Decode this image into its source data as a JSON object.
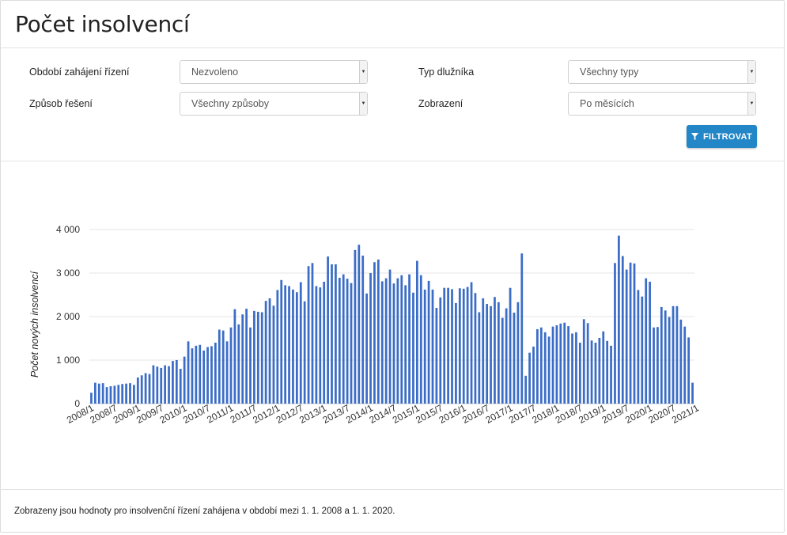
{
  "header": {
    "title": "Počet insolvencí"
  },
  "filters": {
    "period": {
      "label": "Období zahájení řízení",
      "value": "Nezvoleno"
    },
    "debtor_type": {
      "label": "Typ dlužníka",
      "value": "Všechny typy"
    },
    "resolution": {
      "label": "Způsob řešení",
      "value": "Všechny způsoby"
    },
    "display": {
      "label": "Zobrazení",
      "value": "Po měsících"
    },
    "filter_button": "FILTROVAT"
  },
  "footer": {
    "note": "Zobrazeny jsou hodnoty pro insolvenční řízení zahájena v období mezi 1. 1. 2008 a 1. 1. 2020."
  },
  "chart_data": {
    "type": "bar",
    "title": "",
    "xlabel": "",
    "ylabel": "Počet nových insolvencí",
    "ylim": [
      0,
      4000
    ],
    "yticks": [
      0,
      1000,
      2000,
      3000,
      4000
    ],
    "ytick_labels": [
      "0",
      "1 000",
      "2 000",
      "3 000",
      "4 000"
    ],
    "grid": true,
    "bar_color": "#3b6dc7",
    "start": "2008/1",
    "tick_labels": [
      "2008/1",
      "2008/7",
      "2009/1",
      "2009/7",
      "2010/1",
      "2010/7",
      "2011/1",
      "2011/7",
      "2012/1",
      "2012/7",
      "2013/1",
      "2013/7",
      "2014/1",
      "2014/7",
      "2015/1",
      "2015/7",
      "2016/1",
      "2016/7",
      "2017/1",
      "2017/7",
      "2018/1",
      "2018/7",
      "2019/1",
      "2019/7",
      "2020/1",
      "2020/7",
      "2021/1"
    ],
    "values": [
      250,
      480,
      460,
      470,
      380,
      400,
      410,
      430,
      450,
      460,
      470,
      430,
      600,
      650,
      700,
      680,
      880,
      850,
      820,
      880,
      860,
      980,
      1000,
      800,
      1080,
      1430,
      1270,
      1330,
      1350,
      1220,
      1300,
      1320,
      1400,
      1700,
      1680,
      1430,
      1750,
      2170,
      1820,
      2050,
      2180,
      1750,
      2130,
      2110,
      2100,
      2360,
      2420,
      2250,
      2610,
      2840,
      2720,
      2700,
      2620,
      2560,
      2790,
      2350,
      3160,
      3230,
      2700,
      2670,
      2800,
      3380,
      3200,
      3200,
      2890,
      2970,
      2870,
      2770,
      3530,
      3650,
      3400,
      2530,
      3000,
      3250,
      3310,
      2810,
      2880,
      3080,
      2760,
      2880,
      2950,
      2720,
      2970,
      2550,
      3280,
      2950,
      2620,
      2820,
      2620,
      2200,
      2440,
      2660,
      2660,
      2630,
      2310,
      2650,
      2640,
      2680,
      2790,
      2540,
      2100,
      2420,
      2290,
      2240,
      2450,
      2330,
      1970,
      2190,
      2660,
      2090,
      2330,
      3450,
      640,
      1170,
      1310,
      1710,
      1750,
      1640,
      1540,
      1770,
      1800,
      1840,
      1860,
      1780,
      1610,
      1640,
      1400,
      1940,
      1850,
      1450,
      1400,
      1510,
      1660,
      1440,
      1330,
      3230,
      3860,
      3390,
      3080,
      3240,
      3220,
      2610,
      2460,
      2880,
      2800,
      1750,
      1760,
      2220,
      2140,
      1990,
      2240,
      2240,
      1930,
      1770,
      1520,
      480
    ]
  }
}
